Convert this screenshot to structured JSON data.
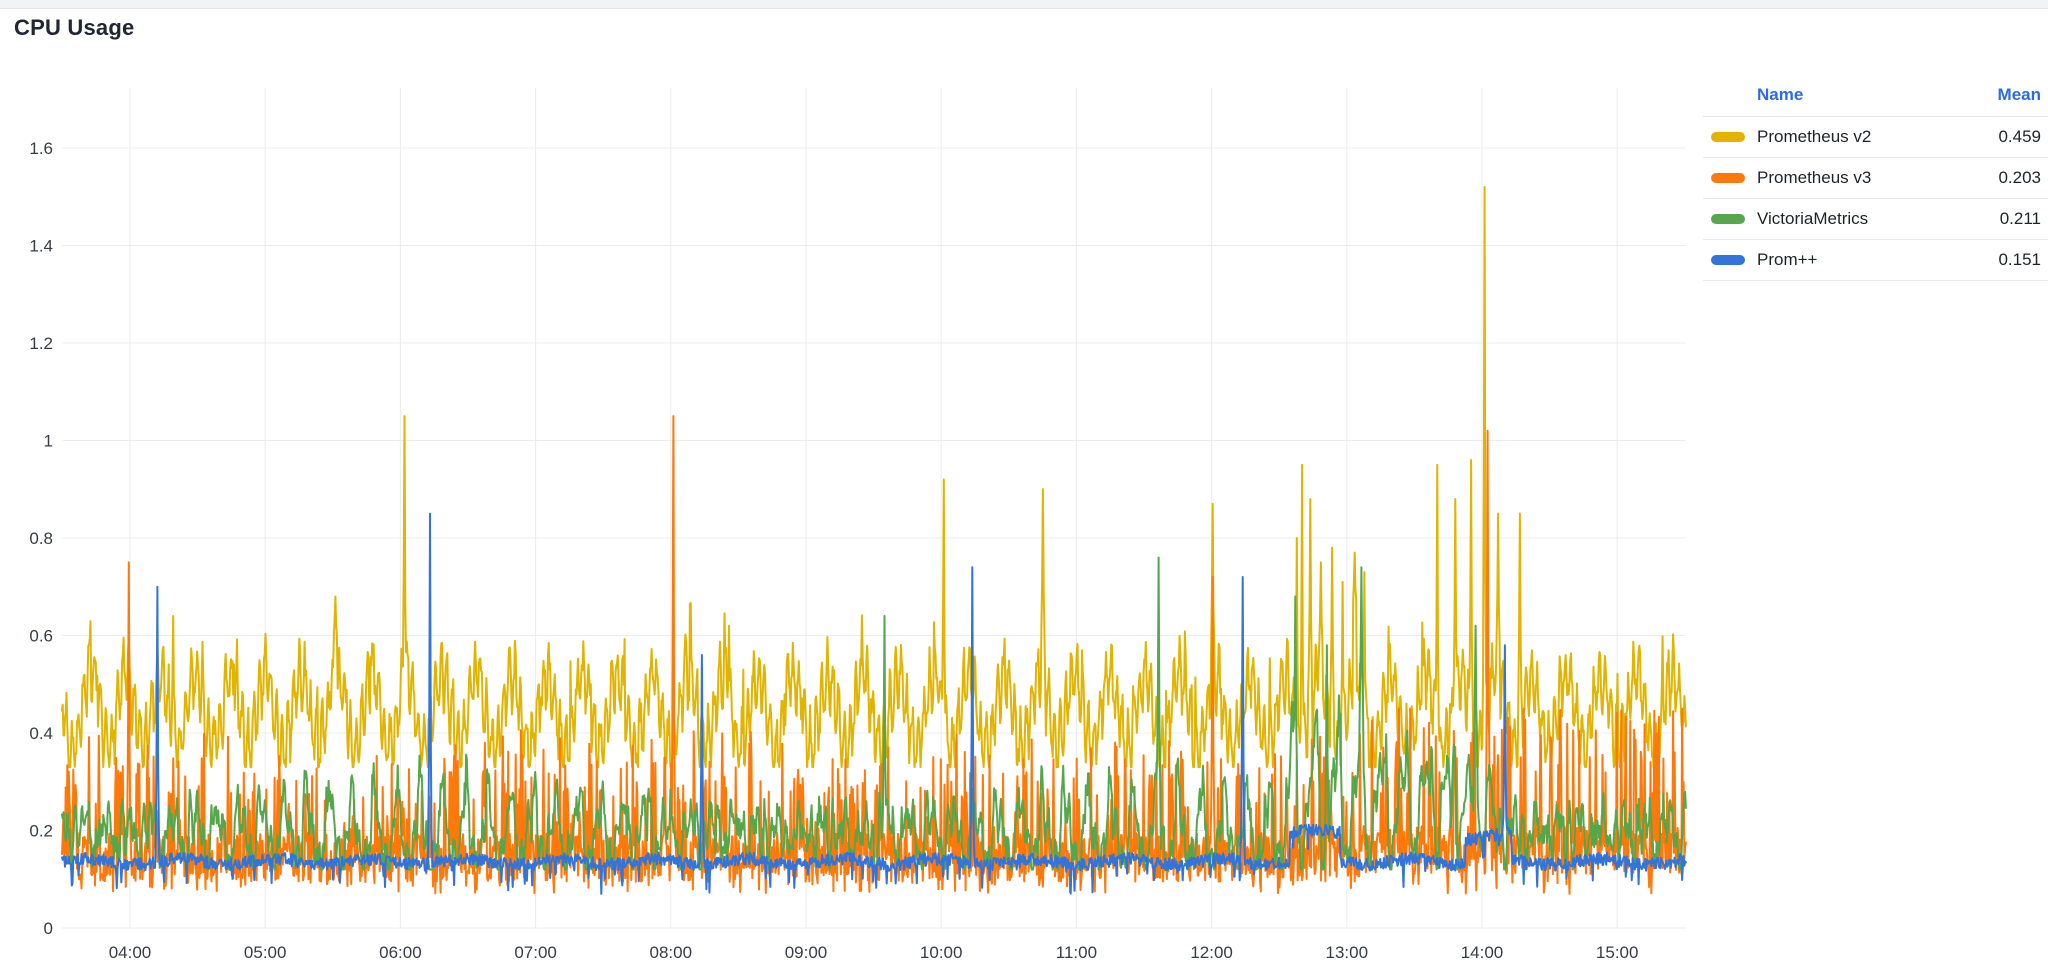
{
  "panel": {
    "title": "CPU Usage"
  },
  "legend": {
    "columns": {
      "name": "Name",
      "mean": "Mean"
    },
    "header_color": "#2b6ce0"
  },
  "colors": {
    "text": "#1f2328",
    "title": "#202730",
    "axis_text": "#383d44",
    "grid": "#ebeced",
    "top_strip": "#f2f3f4"
  },
  "chart_data": {
    "type": "line",
    "title": "CPU Usage",
    "grid": true,
    "legend_position": "right",
    "x_axis": {
      "tick_labels": [
        "04:00",
        "05:00",
        "06:00",
        "07:00",
        "08:00",
        "09:00",
        "10:00",
        "11:00",
        "12:00",
        "13:00",
        "14:00",
        "15:00"
      ],
      "tick_hours": [
        4,
        5,
        6,
        7,
        8,
        9,
        10,
        11,
        12,
        13,
        14,
        15
      ],
      "time_start_hour": 3.497,
      "time_end_hour": 15.509
    },
    "y_axis": {
      "tick_labels": [
        "0",
        "0.2",
        "0.4",
        "0.6",
        "0.8",
        "1",
        "1.2",
        "1.4",
        "1.6"
      ],
      "tick_values": [
        0,
        0.2,
        0.4,
        0.6,
        0.8,
        1.0,
        1.2,
        1.4,
        1.6
      ],
      "range": [
        0,
        1.7
      ]
    },
    "series": [
      {
        "name": "Prometheus v2",
        "mean": "0.459",
        "color": "#E0B400",
        "seed": 7,
        "gen": {
          "kind": "band",
          "base": 0.445,
          "waves": [
            [
              0.26,
              0.075
            ],
            [
              0.042,
              0.055
            ]
          ],
          "noise": 0.034,
          "min": 0.33,
          "max": 0.67
        },
        "windows": [],
        "spikes": [
          [
            4.32,
            0.64
          ],
          [
            5.52,
            0.68
          ],
          [
            6.03,
            1.05
          ],
          [
            8.43,
            0.62
          ],
          [
            10.02,
            0.92
          ],
          [
            10.75,
            0.9
          ],
          [
            12.01,
            0.87
          ],
          [
            12.63,
            0.8
          ],
          [
            12.67,
            0.95
          ],
          [
            12.73,
            0.88
          ],
          [
            12.81,
            0.75
          ],
          [
            12.89,
            0.78
          ],
          [
            12.97,
            0.71
          ],
          [
            13.06,
            0.77
          ],
          [
            13.13,
            0.73
          ],
          [
            13.67,
            0.95
          ],
          [
            13.8,
            0.88
          ],
          [
            13.92,
            0.96
          ],
          [
            14.02,
            1.52
          ],
          [
            14.12,
            0.85
          ],
          [
            14.28,
            0.85
          ]
        ]
      },
      {
        "name": "Prometheus v3",
        "mean": "0.203",
        "color": "#FF780A",
        "seed": 13,
        "gen": {
          "kind": "spiky",
          "base": 0.145,
          "noise": 0.05,
          "spikeChance": 0.2,
          "spikeAmp": 0.23,
          "dipChance": 0.05,
          "dip": 0.07,
          "min": 0.05,
          "max": 0.45
        },
        "windows": [
          {
            "from": 13.1,
            "to": 15.51,
            "lift": 0.015,
            "spikeBoost": 1.3
          }
        ],
        "spikes": [
          [
            3.99,
            0.75
          ],
          [
            8.02,
            1.05
          ],
          [
            12.01,
            0.72
          ],
          [
            14.04,
            1.02
          ]
        ]
      },
      {
        "name": "VictoriaMetrics",
        "mean": "0.211",
        "color": "#56A64B",
        "seed": 23,
        "gen": {
          "kind": "wavy",
          "base": 0.182,
          "waves": [
            [
              0.165,
              0.048
            ],
            [
              0.05,
              0.028
            ]
          ],
          "noise": 0.027,
          "bumpPeriod": 0.17,
          "bumpAmp": 0.1,
          "min": 0.12,
          "max": 0.52
        },
        "windows": [
          {
            "from": 12.55,
            "to": 14.08,
            "lift": 0.05,
            "ampBoost": 1.9
          }
        ],
        "spikes": [
          [
            9.58,
            0.64
          ],
          [
            11.61,
            0.76
          ],
          [
            12.62,
            0.68
          ],
          [
            12.85,
            0.58
          ],
          [
            13.11,
            0.74
          ],
          [
            13.95,
            0.62
          ]
        ]
      },
      {
        "name": "Prom++",
        "mean": "0.151",
        "color": "#3274D9",
        "seed": 41,
        "gen": {
          "kind": "flat",
          "base": 0.136,
          "noise": 0.013,
          "dipChance": 0.04,
          "dip": 0.035,
          "min": 0.07,
          "max": 0.3
        },
        "windows": [
          {
            "from": 12.58,
            "to": 12.95,
            "lift": 0.06
          },
          {
            "from": 13.88,
            "to": 14.22,
            "lift": 0.05
          }
        ],
        "spikes": [
          [
            4.2,
            0.7
          ],
          [
            6.22,
            0.85
          ],
          [
            8.23,
            0.56
          ],
          [
            10.23,
            0.74
          ],
          [
            12.23,
            0.72
          ],
          [
            14.17,
            0.58
          ]
        ]
      }
    ]
  }
}
